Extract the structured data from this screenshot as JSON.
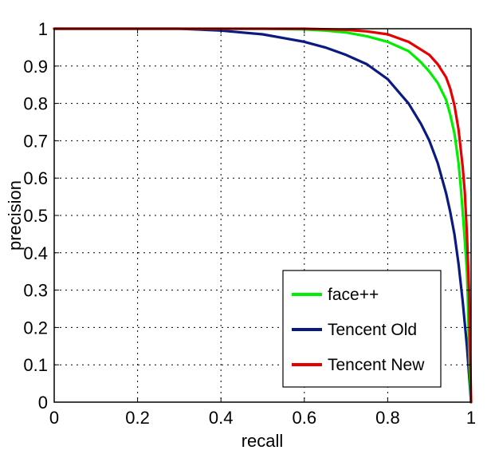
{
  "chart_data": {
    "type": "line",
    "title": "",
    "xlabel": "recall",
    "ylabel": "precision",
    "xlim": [
      0,
      1
    ],
    "ylim": [
      0,
      1
    ],
    "xticks": [
      0,
      0.2,
      0.4,
      0.6,
      0.8,
      1
    ],
    "xtick_labels": [
      "0",
      "0.2",
      "0.4",
      "0.6",
      "0.8",
      "1"
    ],
    "yticks": [
      0,
      0.1,
      0.2,
      0.3,
      0.4,
      0.5,
      0.6,
      0.7,
      0.8,
      0.9,
      1
    ],
    "ytick_labels": [
      "0",
      "0.1",
      "0.2",
      "0.3",
      "0.4",
      "0.5",
      "0.6",
      "0.7",
      "0.8",
      "0.9",
      "1"
    ],
    "grid": true,
    "legend_position": "bottom-right",
    "series": [
      {
        "name": "face++",
        "color": "#00ee00",
        "x": [
          0,
          0.3,
          0.5,
          0.6,
          0.65,
          0.7,
          0.75,
          0.8,
          0.85,
          0.88,
          0.9,
          0.92,
          0.94,
          0.95,
          0.96,
          0.97,
          0.975,
          0.98,
          0.985,
          0.99,
          0.993,
          0.996,
          1.0
        ],
        "y": [
          1.0,
          1.0,
          1.0,
          0.998,
          0.995,
          0.99,
          0.98,
          0.965,
          0.94,
          0.91,
          0.885,
          0.855,
          0.81,
          0.77,
          0.72,
          0.64,
          0.58,
          0.51,
          0.43,
          0.35,
          0.25,
          0.1,
          0.0
        ]
      },
      {
        "name": "Tencent Old",
        "color": "#0a1a80",
        "x": [
          0,
          0.3,
          0.4,
          0.45,
          0.5,
          0.55,
          0.6,
          0.65,
          0.7,
          0.75,
          0.8,
          0.85,
          0.88,
          0.9,
          0.92,
          0.94,
          0.95,
          0.96,
          0.97,
          0.98,
          0.99,
          1.0
        ],
        "y": [
          1.0,
          1.0,
          0.995,
          0.99,
          0.985,
          0.975,
          0.965,
          0.95,
          0.93,
          0.905,
          0.865,
          0.8,
          0.745,
          0.7,
          0.64,
          0.56,
          0.51,
          0.45,
          0.37,
          0.27,
          0.15,
          0.0
        ]
      },
      {
        "name": "Tencent New",
        "color": "#e60000",
        "x": [
          0,
          0.3,
          0.5,
          0.6,
          0.7,
          0.75,
          0.8,
          0.85,
          0.9,
          0.92,
          0.94,
          0.95,
          0.96,
          0.97,
          0.98,
          0.985,
          0.99,
          0.995,
          1.0
        ],
        "y": [
          1.0,
          1.0,
          1.0,
          1.0,
          0.997,
          0.993,
          0.985,
          0.965,
          0.93,
          0.905,
          0.87,
          0.84,
          0.795,
          0.73,
          0.63,
          0.56,
          0.45,
          0.3,
          0.0
        ]
      }
    ]
  }
}
